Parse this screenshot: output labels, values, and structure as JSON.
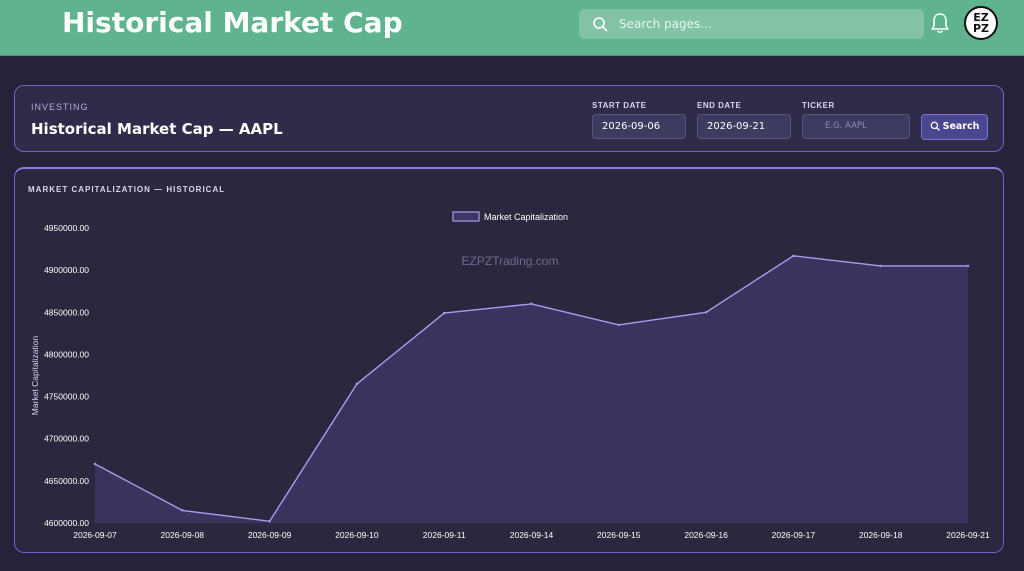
{
  "header": {
    "title": "Historical Market Cap",
    "search_placeholder": "Search pages...",
    "avatar_text": "EZ PZ"
  },
  "filters": {
    "eyebrow": "INVESTING",
    "title": "Historical Market Cap — AAPL",
    "start_label": "START DATE",
    "start_value": "2026-09-06",
    "end_label": "END DATE",
    "end_value": "2026-09-21",
    "ticker_label": "TICKER",
    "ticker_placeholder": "E.G. AAPL",
    "search_button": "Search"
  },
  "chart": {
    "heading": "MARKET CAPITALIZATION — HISTORICAL"
  },
  "colors": {
    "header_bg": "#5fb38e",
    "page_bg": "#25233a",
    "accent": "#8a7fe0",
    "line": "#a99cf0",
    "area": "#3b3663"
  },
  "chart_data": {
    "type": "area",
    "title": "",
    "watermark": "EZPZTrading.com",
    "xlabel": "",
    "ylabel": "Market Capitalization",
    "legend": "top",
    "grid": false,
    "ylim": [
      4600000,
      4950000
    ],
    "yticks": [
      "4600000.00",
      "4650000.00",
      "4700000.00",
      "4750000.00",
      "4800000.00",
      "4850000.00",
      "4900000.00",
      "4950000.00"
    ],
    "categories": [
      "2026-09-07",
      "2026-09-08",
      "2026-09-09",
      "2026-09-10",
      "2026-09-11",
      "2026-09-14",
      "2026-09-15",
      "2026-09-16",
      "2026-09-17",
      "2026-09-18",
      "2026-09-21"
    ],
    "series": [
      {
        "name": "Market Capitalization",
        "values": [
          4670000,
          4615000,
          4602000,
          4765000,
          4849000,
          4860000,
          4835000,
          4850000,
          4917000,
          4905000,
          4905000
        ]
      }
    ]
  }
}
